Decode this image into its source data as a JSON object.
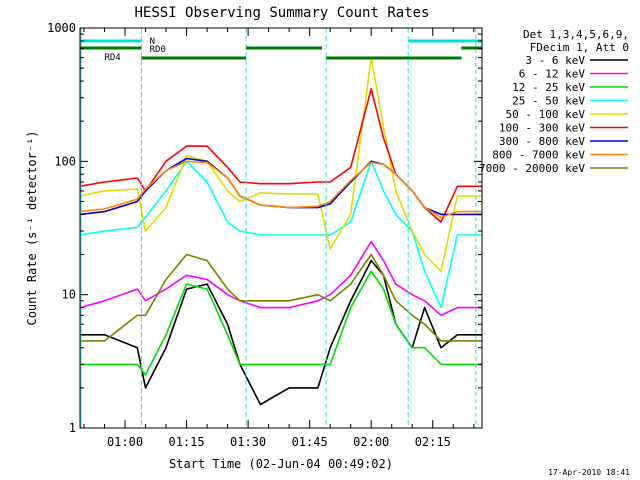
{
  "chart_data": {
    "type": "line",
    "title": "HESSI Observing Summary Count Rates",
    "xlabel": "Start Time (02-Jun-04 00:49:02)",
    "ylabel": "Count Rate (s⁻¹ detector⁻¹)",
    "y_scale": "log",
    "ylim": [
      1,
      1000
    ],
    "xlim": [
      "00:49:02",
      "02:27:00"
    ],
    "x_ticks": [
      "01:00",
      "01:15",
      "01:30",
      "01:45",
      "02:00",
      "02:15"
    ],
    "y_ticks": [
      "1",
      "10",
      "100",
      "1000"
    ],
    "legend_header": [
      "Det 1,3,4,5,6,9,",
      "FDecim 1, Att 0"
    ],
    "legend_placement": "right",
    "timestamp": "17-Apr-2010 18:41",
    "markers": {
      "N": "N",
      "RD0": "RD0",
      "RD4": "RD4"
    },
    "series": [
      {
        "name": "3 - 6 keV",
        "color": "#000000",
        "times": [
          "00:49:02",
          "00:55",
          "01:03",
          "01:05",
          "01:10",
          "01:15",
          "01:20",
          "01:25",
          "01:28",
          "01:33",
          "01:40",
          "01:47",
          "01:50",
          "01:55",
          "02:00",
          "02:03",
          "02:06",
          "02:10",
          "02:13",
          "02:17",
          "02:21",
          "02:27"
        ],
        "values": [
          5,
          5,
          4,
          2,
          4,
          11,
          12,
          6,
          3,
          1.5,
          2,
          2,
          4,
          9,
          18,
          14,
          6,
          4,
          8,
          4,
          5,
          5
        ]
      },
      {
        "name": "6 - 12 keV",
        "color": "#ff00ff",
        "times": [
          "00:49:02",
          "00:55",
          "01:03",
          "01:05",
          "01:10",
          "01:15",
          "01:20",
          "01:25",
          "01:28",
          "01:33",
          "01:40",
          "01:47",
          "01:50",
          "01:55",
          "02:00",
          "02:03",
          "02:06",
          "02:10",
          "02:13",
          "02:17",
          "02:21",
          "02:27"
        ],
        "values": [
          8,
          9,
          11,
          9,
          11,
          14,
          13,
          10,
          9,
          8,
          8,
          9,
          10,
          14,
          25,
          18,
          12,
          10,
          9,
          7,
          8,
          8
        ]
      },
      {
        "name": "12 - 25 keV",
        "color": "#00dd00",
        "times": [
          "00:49:02",
          "00:55",
          "01:03",
          "01:05",
          "01:10",
          "01:15",
          "01:20",
          "01:25",
          "01:28",
          "01:33",
          "01:40",
          "01:47",
          "01:50",
          "01:55",
          "02:00",
          "02:03",
          "02:06",
          "02:10",
          "02:13",
          "02:17",
          "02:21",
          "02:27"
        ],
        "values": [
          3,
          3,
          3,
          2.5,
          5,
          12,
          11,
          5,
          3,
          3,
          3,
          3,
          3,
          8,
          15,
          11,
          6,
          4,
          4,
          3,
          3,
          3
        ]
      },
      {
        "name": "25 - 50 keV",
        "color": "#00ffff",
        "times": [
          "00:49:02",
          "00:55",
          "01:03",
          "01:05",
          "01:10",
          "01:15",
          "01:20",
          "01:25",
          "01:28",
          "01:33",
          "01:40",
          "01:47",
          "01:50",
          "01:55",
          "02:00",
          "02:03",
          "02:06",
          "02:10",
          "02:13",
          "02:17",
          "02:21",
          "02:27"
        ],
        "values": [
          28,
          30,
          32,
          38,
          60,
          100,
          70,
          35,
          30,
          28,
          28,
          28,
          28,
          35,
          100,
          60,
          40,
          30,
          15,
          8,
          28,
          28
        ]
      },
      {
        "name": "50 - 100 keV",
        "color": "#dddd00",
        "times": [
          "00:49:02",
          "00:55",
          "01:03",
          "01:05",
          "01:10",
          "01:15",
          "01:20",
          "01:25",
          "01:28",
          "01:33",
          "01:40",
          "01:47",
          "01:50",
          "01:55",
          "02:00",
          "02:03",
          "02:06",
          "02:10",
          "02:13",
          "02:17",
          "02:21",
          "02:27"
        ],
        "values": [
          55,
          60,
          62,
          30,
          45,
          110,
          100,
          60,
          50,
          58,
          57,
          57,
          22,
          40,
          600,
          180,
          60,
          30,
          20,
          15,
          55,
          55
        ]
      },
      {
        "name": "100 - 300 keV",
        "color": "#ff0000",
        "times": [
          "00:49:02",
          "00:55",
          "01:03",
          "01:05",
          "01:10",
          "01:15",
          "01:20",
          "01:25",
          "01:28",
          "01:33",
          "01:40",
          "01:47",
          "01:50",
          "01:55",
          "02:00",
          "02:03",
          "02:06",
          "02:10",
          "02:13",
          "02:17",
          "02:21",
          "02:27"
        ],
        "values": [
          65,
          70,
          75,
          60,
          100,
          130,
          130,
          90,
          70,
          68,
          68,
          70,
          70,
          90,
          350,
          150,
          80,
          60,
          45,
          35,
          65,
          65
        ]
      },
      {
        "name": "300 - 800 keV",
        "color": "#0000cc",
        "times": [
          "00:49:02",
          "00:55",
          "01:03",
          "01:05",
          "01:10",
          "01:15",
          "01:20",
          "01:25",
          "01:28",
          "01:33",
          "01:40",
          "01:47",
          "01:50",
          "01:55",
          "02:00",
          "02:03",
          "02:06",
          "02:10",
          "02:13",
          "02:17",
          "02:21",
          "02:27"
        ],
        "values": [
          40,
          42,
          50,
          60,
          85,
          105,
          100,
          75,
          55,
          47,
          45,
          45,
          48,
          70,
          100,
          95,
          80,
          60,
          45,
          40,
          40,
          40
        ]
      },
      {
        "name": "800 - 7000 keV",
        "color": "#ff8800",
        "times": [
          "00:49:02",
          "00:55",
          "01:03",
          "01:05",
          "01:10",
          "01:15",
          "01:20",
          "01:25",
          "01:28",
          "01:33",
          "01:40",
          "01:47",
          "01:50",
          "01:55",
          "02:00",
          "02:03",
          "02:06",
          "02:10",
          "02:13",
          "02:17",
          "02:21",
          "02:27"
        ],
        "values": [
          42,
          44,
          52,
          62,
          85,
          100,
          98,
          75,
          55,
          47,
          45,
          46,
          50,
          72,
          98,
          95,
          80,
          60,
          45,
          38,
          42,
          42
        ]
      },
      {
        "name": "7000 - 20000 keV",
        "color": "#808000",
        "times": [
          "00:49:02",
          "00:55",
          "01:03",
          "01:05",
          "01:10",
          "01:15",
          "01:20",
          "01:25",
          "01:28",
          "01:33",
          "01:40",
          "01:47",
          "01:50",
          "01:55",
          "02:00",
          "02:03",
          "02:06",
          "02:10",
          "02:13",
          "02:17",
          "02:21",
          "02:27"
        ],
        "values": [
          4.5,
          4.5,
          7,
          7,
          13,
          20,
          18,
          11,
          9,
          9,
          9,
          10,
          9,
          12,
          20,
          14,
          9,
          7,
          6,
          4.5,
          4.5,
          4.5
        ]
      }
    ]
  }
}
